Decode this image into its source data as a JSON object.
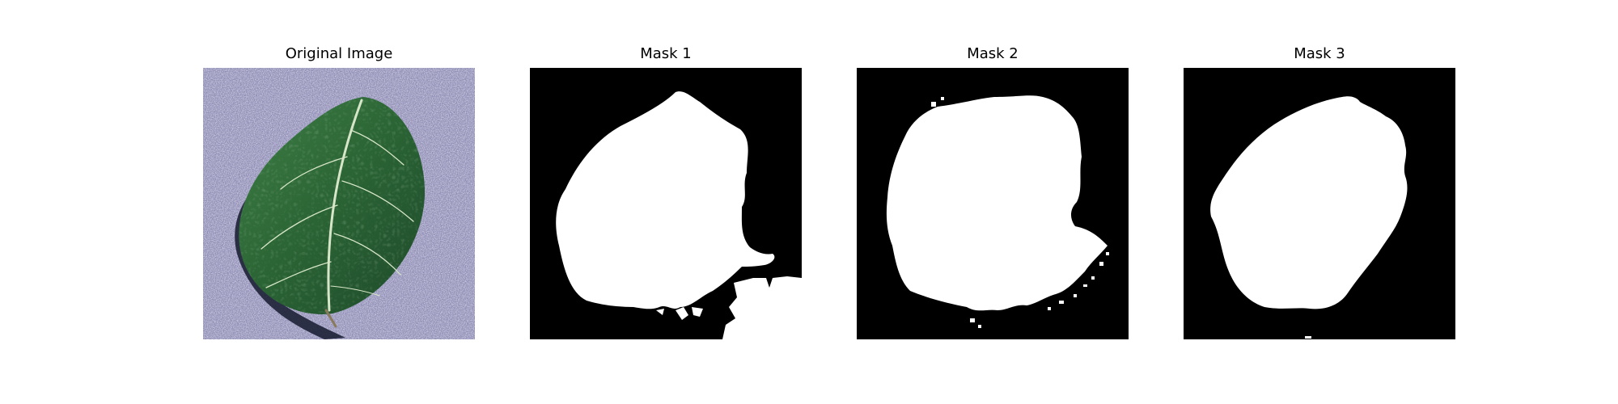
{
  "figure": {
    "panels": [
      {
        "title": "Original Image",
        "kind": "photo",
        "subject": "leaf"
      },
      {
        "title": "Mask 1",
        "kind": "binary-mask"
      },
      {
        "title": "Mask 2",
        "kind": "binary-mask"
      },
      {
        "title": "Mask 3",
        "kind": "binary-mask"
      }
    ],
    "colors": {
      "background": "#ffffff",
      "mask_foreground": "#ffffff",
      "mask_background": "#000000",
      "sand": "#9c99bd",
      "leaf": "#2f6a3a"
    }
  }
}
